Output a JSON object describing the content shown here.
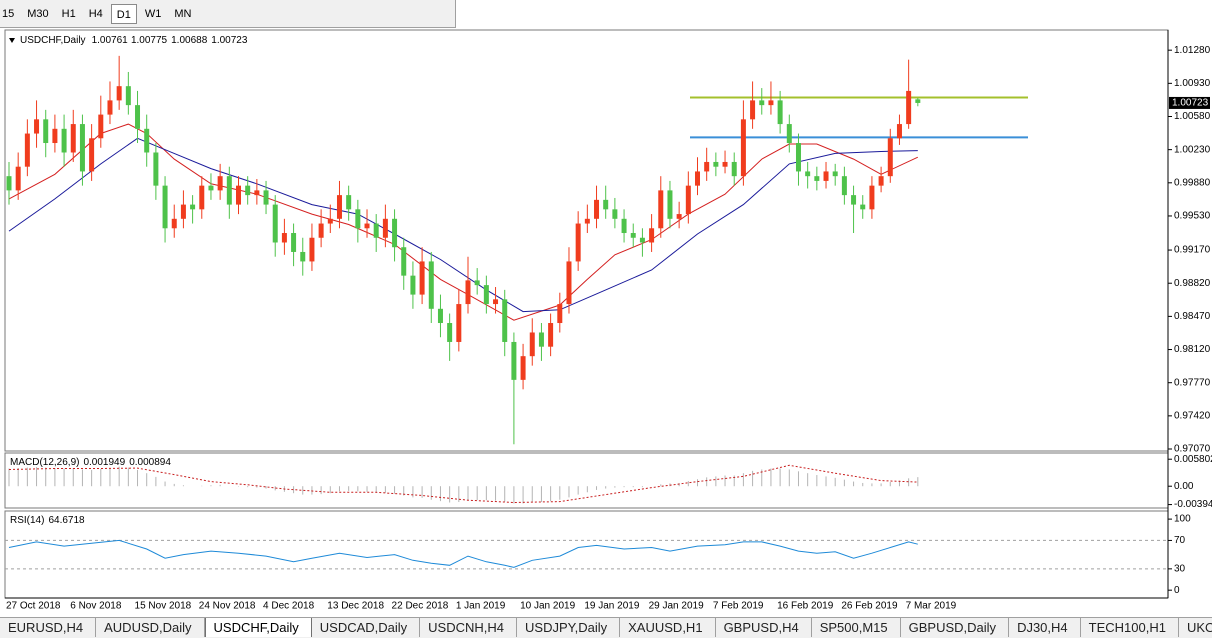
{
  "toolbar": {
    "timeframes": [
      "15",
      "M30",
      "H1",
      "H4",
      "D1",
      "W1",
      "MN"
    ],
    "active": 4
  },
  "chart_data": [
    {
      "type": "candlestick",
      "title": "USDCHF,Daily",
      "categories": [
        "27 Oct 2018",
        null,
        null,
        null,
        null,
        null,
        null,
        "6 Nov 2018",
        null,
        null,
        null,
        null,
        null,
        null,
        "15 Nov 2018",
        null,
        null,
        null,
        null,
        null,
        null,
        "24 Nov 2018",
        null,
        null,
        null,
        null,
        null,
        null,
        "4 Dec 2018",
        null,
        null,
        null,
        null,
        null,
        null,
        "13 Dec 2018",
        null,
        null,
        null,
        null,
        null,
        null,
        "22 Dec 2018",
        null,
        null,
        null,
        null,
        null,
        null,
        "1 Jan 2019",
        null,
        null,
        null,
        null,
        null,
        null,
        "10 Jan 2019",
        null,
        null,
        null,
        null,
        null,
        null,
        "19 Jan 2019",
        null,
        null,
        null,
        null,
        null,
        null,
        "29 Jan 2019",
        null,
        null,
        null,
        null,
        null,
        null,
        "7 Feb 2019",
        null,
        null,
        null,
        null,
        null,
        null,
        "16 Feb 2019",
        null,
        null,
        null,
        null,
        null,
        null,
        "26 Feb 2019",
        null,
        null,
        null,
        null,
        null,
        null,
        "7 Mar 2019",
        null
      ],
      "open": [
        0.9995,
        0.998,
        1.0005,
        1.004,
        1.0055,
        1.003,
        1.0045,
        1.002,
        1.005,
        1.0,
        1.0035,
        1.006,
        1.0075,
        1.009,
        1.007,
        1.0045,
        1.002,
        0.9985,
        0.994,
        0.995,
        0.9965,
        0.996,
        0.9985,
        0.998,
        0.9995,
        0.9965,
        0.9985,
        0.9975,
        0.998,
        0.9965,
        0.9925,
        0.9935,
        0.9915,
        0.9905,
        0.993,
        0.9945,
        0.995,
        0.9975,
        0.996,
        0.994,
        0.9945,
        0.993,
        0.995,
        0.992,
        0.989,
        0.987,
        0.9905,
        0.9855,
        0.984,
        0.982,
        0.986,
        0.9885,
        0.988,
        0.986,
        0.9865,
        0.982,
        0.978,
        0.9805,
        0.983,
        0.9815,
        0.984,
        0.986,
        0.9905,
        0.9945,
        0.995,
        0.997,
        0.996,
        0.995,
        0.9935,
        0.993,
        0.9925,
        0.994,
        0.998,
        0.995,
        0.9955,
        0.9985,
        1.0,
        1.001,
        1.0005,
        1.001,
        0.9995,
        1.0055,
        1.0075,
        1.007,
        1.0075,
        1.005,
        1.003,
        1.0,
        0.9995,
        0.999,
        1.0,
        0.9995,
        0.9975,
        0.9965,
        0.996,
        0.9985,
        0.9995,
        1.0035,
        1.005,
        1.00761
      ],
      "high": [
        1.001,
        1.002,
        1.0055,
        1.0075,
        1.0065,
        1.006,
        1.006,
        1.0065,
        1.006,
        1.005,
        1.008,
        1.0095,
        1.0122,
        1.0105,
        1.0085,
        1.006,
        1.003,
        0.9995,
        0.9965,
        0.998,
        0.9975,
        0.9995,
        0.9998,
        1.0008,
        1.0005,
        0.9995,
        0.9995,
        0.9992,
        0.999,
        0.9975,
        0.995,
        0.9945,
        0.993,
        0.9945,
        0.996,
        0.9965,
        0.999,
        0.9985,
        0.997,
        0.996,
        0.9955,
        0.9965,
        0.996,
        0.993,
        0.9905,
        0.992,
        0.9915,
        0.987,
        0.985,
        0.9875,
        0.991,
        0.9898,
        0.989,
        0.9878,
        0.9875,
        0.983,
        0.9818,
        0.9845,
        0.984,
        0.985,
        0.9872,
        0.992,
        0.9958,
        0.9965,
        0.9985,
        0.9985,
        0.9972,
        0.996,
        0.9945,
        0.994,
        0.9955,
        0.9995,
        0.999,
        0.9968,
        1.0,
        1.0015,
        1.0025,
        1.002,
        1.0022,
        1.002,
        1.0075,
        1.0095,
        1.0088,
        1.0095,
        1.0085,
        1.006,
        1.004,
        1.001,
        1.0005,
        1.001,
        1.0008,
        1.0005,
        0.9985,
        0.9975,
        0.9995,
        1.0005,
        1.0045,
        1.006,
        1.0118,
        1.00775
      ],
      "low": [
        0.9965,
        0.997,
        0.9995,
        1.0025,
        1.0015,
        1.002,
        1.0005,
        1.001,
        0.9985,
        0.999,
        1.0025,
        1.005,
        1.0065,
        1.006,
        1.003,
        1.0005,
        0.997,
        0.9925,
        0.993,
        0.994,
        0.9945,
        0.995,
        0.997,
        0.997,
        0.995,
        0.9955,
        0.9965,
        0.9965,
        0.9955,
        0.991,
        0.9912,
        0.99,
        0.989,
        0.9895,
        0.992,
        0.9935,
        0.994,
        0.9948,
        0.9925,
        0.993,
        0.9915,
        0.992,
        0.9905,
        0.9875,
        0.9855,
        0.986,
        0.984,
        0.9825,
        0.98,
        0.981,
        0.985,
        0.987,
        0.985,
        0.985,
        0.9805,
        0.9712,
        0.977,
        0.9795,
        0.98,
        0.9805,
        0.983,
        0.985,
        0.9895,
        0.9935,
        0.994,
        0.995,
        0.994,
        0.9925,
        0.992,
        0.991,
        0.9915,
        0.993,
        0.994,
        0.994,
        0.9945,
        0.9975,
        0.999,
        0.9995,
        0.9998,
        0.9985,
        0.9985,
        1.0045,
        1.006,
        1.006,
        1.004,
        1.002,
        0.9985,
        0.9982,
        0.998,
        0.9982,
        0.9985,
        0.9965,
        0.9935,
        0.995,
        0.995,
        0.9978,
        0.9988,
        1.0028,
        1.0045,
        1.00688
      ],
      "close": [
        0.998,
        1.0005,
        1.004,
        1.0055,
        1.003,
        1.0045,
        1.002,
        1.005,
        1.0,
        1.0035,
        1.006,
        1.0075,
        1.009,
        1.007,
        1.0045,
        1.002,
        0.9985,
        0.994,
        0.995,
        0.9965,
        0.996,
        0.9985,
        0.998,
        0.9995,
        0.9965,
        0.9985,
        0.9975,
        0.998,
        0.9965,
        0.9925,
        0.9935,
        0.9915,
        0.9905,
        0.993,
        0.9945,
        0.995,
        0.9975,
        0.996,
        0.994,
        0.9945,
        0.993,
        0.995,
        0.992,
        0.989,
        0.987,
        0.9905,
        0.9855,
        0.984,
        0.982,
        0.986,
        0.9885,
        0.988,
        0.986,
        0.9865,
        0.982,
        0.978,
        0.9805,
        0.983,
        0.9815,
        0.984,
        0.986,
        0.9905,
        0.9945,
        0.995,
        0.997,
        0.996,
        0.995,
        0.9935,
        0.993,
        0.9925,
        0.994,
        0.998,
        0.995,
        0.9955,
        0.9985,
        1.0,
        1.001,
        1.0005,
        1.001,
        0.9995,
        1.0055,
        1.0075,
        1.007,
        1.0075,
        1.005,
        1.003,
        1.0,
        0.9995,
        0.999,
        1.0,
        0.9995,
        0.9975,
        0.9965,
        0.996,
        0.9985,
        0.9995,
        1.0035,
        1.005,
        1.0085,
        1.00723
      ],
      "up_color": "#f03c1e",
      "down_color": "#4ec24a",
      "overlays": [
        {
          "color": "#d42020",
          "x": [
            0,
            5,
            10,
            13,
            15,
            18,
            22,
            27,
            33,
            37,
            42,
            47,
            50,
            55,
            60,
            63,
            66,
            70,
            74,
            78,
            82,
            85,
            88,
            92,
            95,
            99
          ],
          "values": [
            0.9971,
            0.9997,
            1.004,
            1.005,
            1.004,
            1.0013,
            0.9987,
            0.9976,
            0.9955,
            0.9944,
            0.9923,
            0.9886,
            0.987,
            0.9843,
            0.9859,
            0.9886,
            0.9912,
            0.9928,
            0.9955,
            0.9976,
            1.0013,
            1.0029,
            1.0029,
            1.0013,
            0.9997,
            1.0015
          ]
        },
        {
          "color": "#1a1a9a",
          "x": [
            0,
            5,
            10,
            14,
            18,
            22,
            27,
            33,
            38,
            42,
            47,
            52,
            56,
            60,
            65,
            70,
            75,
            80,
            85,
            90,
            95,
            99
          ],
          "values": [
            0.9937,
            0.9971,
            1.0008,
            1.0035,
            1.0019,
            1.0003,
            0.9987,
            0.9965,
            0.9955,
            0.9934,
            0.9907,
            0.9875,
            0.9852,
            0.9854,
            0.9875,
            0.9896,
            0.9934,
            0.9965,
            1.0008,
            1.0019,
            1.0021,
            1.0022
          ]
        }
      ],
      "levels": [
        {
          "value": 1.0078,
          "color": "#a4c02c"
        },
        {
          "value": 1.0036,
          "color": "#3a8fd8"
        }
      ],
      "ylim": [
        0.97049,
        1.01493
      ],
      "yticks": [
        {
          "value": 1.0128,
          "label": "1.01280"
        },
        {
          "value": 1.0093,
          "label": "1.00930"
        },
        {
          "value": 1.0058,
          "label": "1.00580"
        },
        {
          "value": 1.0023,
          "label": "1.00230"
        },
        {
          "value": 0.9988,
          "label": "0.99880"
        },
        {
          "value": 0.9953,
          "label": "0.99530"
        },
        {
          "value": 0.9917,
          "label": "0.99170"
        },
        {
          "value": 0.9882,
          "label": "0.98820"
        },
        {
          "value": 0.9847,
          "label": "0.98470"
        },
        {
          "value": 0.9812,
          "label": "0.98120"
        },
        {
          "value": 0.9777,
          "label": "0.97770"
        },
        {
          "value": 0.9742,
          "label": "0.97420"
        },
        {
          "value": 0.9707,
          "label": "0.97070"
        }
      ]
    },
    {
      "type": "macd",
      "title": "MACD(12,26,9)",
      "histogram": [
        0.0038,
        0.0039,
        0.004,
        0.0041,
        0.004,
        0.0039,
        0.0038,
        0.0039,
        0.0036,
        0.0035,
        0.0037,
        0.0039,
        0.0042,
        0.004,
        0.0035,
        0.0028,
        0.002,
        0.001,
        0.0005,
        0.0002,
        0.0,
        0.0001,
        0.0002,
        0.0003,
        0.0,
        -0.0001,
        -0.0002,
        -0.0003,
        -0.0005,
        -0.0009,
        -0.0012,
        -0.0015,
        -0.0018,
        -0.0018,
        -0.0017,
        -0.0015,
        -0.0011,
        -0.001,
        -0.0011,
        -0.0012,
        -0.0014,
        -0.0014,
        -0.0016,
        -0.002,
        -0.0024,
        -0.0025,
        -0.0029,
        -0.0032,
        -0.0035,
        -0.0034,
        -0.0031,
        -0.003,
        -0.003,
        -0.0031,
        -0.0033,
        -0.0037,
        -0.0037,
        -0.0035,
        -0.0034,
        -0.0032,
        -0.0029,
        -0.0024,
        -0.0018,
        -0.0013,
        -0.0008,
        -0.0005,
        -0.0003,
        -0.0002,
        -0.0002,
        -0.0002,
        0.0,
        0.0004,
        0.0006,
        0.0007,
        0.0011,
        0.0015,
        0.0019,
        0.0021,
        0.0023,
        0.0023,
        0.0028,
        0.0033,
        0.0036,
        0.0038,
        0.0038,
        0.0036,
        0.0032,
        0.0028,
        0.0024,
        0.0021,
        0.0018,
        0.0014,
        0.001,
        0.0007,
        0.0006,
        0.0006,
        0.0009,
        0.0012,
        0.0017,
        0.001949
      ],
      "histogram_color": "#b4b4b4",
      "signal": {
        "color": "#c81e1e",
        "x": [
          0,
          5,
          10,
          14,
          18,
          22,
          26,
          30,
          35,
          40,
          45,
          50,
          55,
          60,
          65,
          70,
          75,
          80,
          85,
          90,
          95,
          99
        ],
        "values": [
          0.0036,
          0.0038,
          0.0038,
          0.0039,
          0.0025,
          0.001,
          0.0003,
          -0.0006,
          -0.0013,
          -0.0013,
          -0.002,
          -0.003,
          -0.0035,
          -0.0033,
          -0.0018,
          -0.0003,
          0.001,
          0.0021,
          0.0045,
          0.0028,
          0.0012,
          0.000894
        ]
      },
      "ylim": [
        -0.00468,
        0.00692
      ],
      "yticks": [
        0.005802,
        {
          "value": 0,
          "label": "0.00"
        },
        -0.003945
      ]
    },
    {
      "type": "line",
      "title": "RSI(14)",
      "color": "#1e8ad8",
      "x": [
        0,
        3,
        6,
        9,
        12,
        15,
        17,
        19,
        22,
        25,
        28,
        31,
        33,
        36,
        39,
        42,
        44,
        46,
        48,
        50,
        52,
        54,
        55,
        57,
        60,
        62,
        64,
        67,
        70,
        72,
        75,
        78,
        80,
        82,
        84,
        86,
        88,
        90,
        92,
        94,
        96,
        98,
        99
      ],
      "values": [
        60,
        68,
        62,
        66,
        70,
        58,
        45,
        50,
        55,
        52,
        48,
        40,
        45,
        52,
        46,
        50,
        42,
        38,
        35,
        48,
        40,
        35,
        32,
        42,
        48,
        60,
        63,
        58,
        60,
        55,
        62,
        64,
        68,
        68,
        62,
        55,
        52,
        54,
        45,
        52,
        60,
        68,
        64.6718
      ],
      "levels": [
        70,
        30
      ],
      "ylim": [
        -11,
        110
      ],
      "yticks": [
        100,
        70,
        30,
        0
      ]
    }
  ],
  "tabs": [
    "EURUSD,H4",
    "AUDUSD,Daily",
    "USDCHF,Daily",
    "USDCAD,Daily",
    "USDCNH,H4",
    "USDJPY,Daily",
    "XAUUSD,H1",
    "GBPUSD,H4",
    "SP500,M15",
    "GBPUSD,Daily",
    "DJ30,H4",
    "TECH100,H1",
    "UKOil,"
  ],
  "active_tab": 2
}
